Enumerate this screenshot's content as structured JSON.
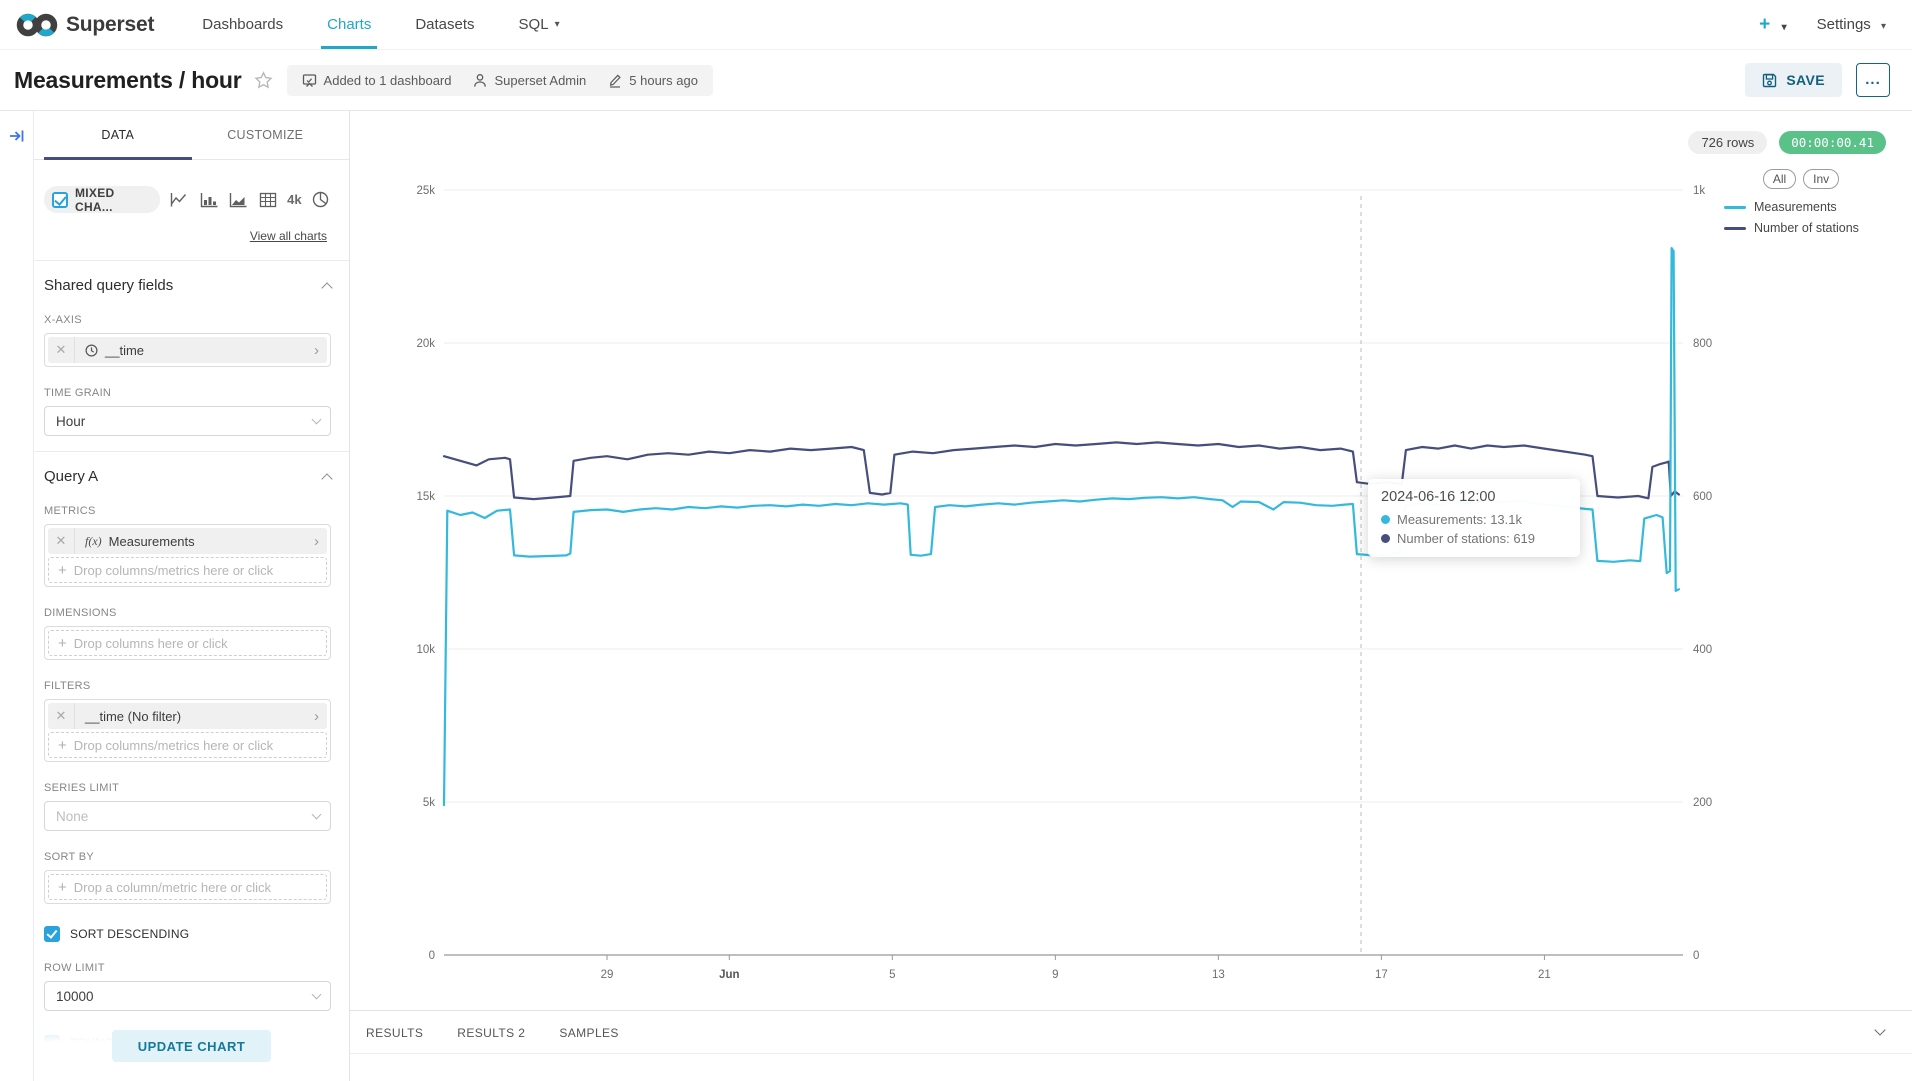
{
  "nav": {
    "brand": "Superset",
    "items": [
      {
        "label": "Dashboards",
        "active": false
      },
      {
        "label": "Charts",
        "active": true
      },
      {
        "label": "Datasets",
        "active": false
      },
      {
        "label": "SQL",
        "active": false
      }
    ],
    "plus": "+",
    "settings": "Settings"
  },
  "header": {
    "title": "Measurements / hour",
    "meta": {
      "dashboards": "Added to 1 dashboard",
      "owner": "Superset Admin",
      "modified": "5 hours ago"
    },
    "save": "SAVE",
    "more": "..."
  },
  "panel": {
    "tab_data": "DATA",
    "tab_customize": "CUSTOMIZE",
    "viz_chip": "MIXED CHA...",
    "viz_4k": "4k",
    "view_all": "View all charts",
    "shared": {
      "heading": "Shared query fields",
      "xaxis_label": "X-AXIS",
      "xaxis_value": "__time",
      "time_grain_label": "TIME GRAIN",
      "time_grain_value": "Hour"
    },
    "query_a": {
      "heading": "Query A",
      "metrics_label": "METRICS",
      "metric_fn": "f(x)",
      "metric_value": "Measurements",
      "drop_metrics": "Drop columns/metrics here or click",
      "dimensions_label": "DIMENSIONS",
      "drop_columns": "Drop columns here or click",
      "filters_label": "FILTERS",
      "filter_value": "__time (No filter)",
      "drop_filters": "Drop columns/metrics here or click",
      "series_limit_label": "SERIES LIMIT",
      "series_limit_value": "None",
      "sort_by_label": "SORT BY",
      "drop_sort": "Drop a column/metric here or click",
      "sort_descending": "SORT DESCENDING",
      "row_limit_label": "ROW LIMIT",
      "row_limit_value": "10000",
      "truncate_metric": "TRUNCATE METRIC",
      "update_chart": "UPDATE CHART"
    }
  },
  "chart_area": {
    "rows_badge": "726 rows",
    "timer_badge": "00:00:00.41"
  },
  "results": {
    "tabs": [
      "RESULTS",
      "RESULTS 2",
      "SAMPLES"
    ]
  },
  "colors": {
    "accent": "#20A7C9",
    "success": "#5AC189",
    "measurements": "#33B9DC",
    "stations": "#454E7C"
  },
  "chart_data": {
    "type": "line",
    "x_axis": {
      "note": "day offsets; day 0 = 2024-05-25 00:00, hourly grain, 726 rows",
      "range_days": [
        0,
        30.4
      ],
      "ticks": [
        {
          "pos": 4,
          "label": "29",
          "bold": false
        },
        {
          "pos": 7,
          "label": "Jun",
          "bold": true
        },
        {
          "pos": 11,
          "label": "5",
          "bold": false
        },
        {
          "pos": 15,
          "label": "9",
          "bold": false
        },
        {
          "pos": 19,
          "label": "13",
          "bold": false
        },
        {
          "pos": 23,
          "label": "17",
          "bold": false
        },
        {
          "pos": 27,
          "label": "21",
          "bold": false
        }
      ]
    },
    "y_left": {
      "range": [
        0,
        25000
      ],
      "ticks": [
        "0",
        "5k",
        "10k",
        "15k",
        "20k",
        "25k"
      ]
    },
    "y_right": {
      "range": [
        0,
        1000
      ],
      "ticks": [
        "0",
        "200",
        "400",
        "600",
        "800",
        "1k"
      ]
    },
    "legend_buttons": [
      "All",
      "Inv"
    ],
    "crosshair_day": 22.5,
    "tooltip": {
      "title": "2024-06-16 12:00",
      "rows": [
        {
          "text": "Measurements: 13.1k",
          "series": 0
        },
        {
          "text": "Number of stations: 619",
          "series": 1
        }
      ]
    },
    "series": [
      {
        "name": "Measurements",
        "color": "#33B9DC",
        "axis": "left",
        "points": [
          [
            0,
            4900
          ],
          [
            0.08,
            14520
          ],
          [
            0.4,
            14380
          ],
          [
            0.7,
            14460
          ],
          [
            1.0,
            14280
          ],
          [
            1.3,
            14520
          ],
          [
            1.62,
            14560
          ],
          [
            1.72,
            13060
          ],
          [
            2.1,
            13020
          ],
          [
            2.6,
            13040
          ],
          [
            3.0,
            13060
          ],
          [
            3.1,
            13120
          ],
          [
            3.18,
            14480
          ],
          [
            3.6,
            14540
          ],
          [
            4.0,
            14560
          ],
          [
            4.4,
            14480
          ],
          [
            4.8,
            14560
          ],
          [
            5.2,
            14600
          ],
          [
            5.6,
            14560
          ],
          [
            6.0,
            14640
          ],
          [
            6.4,
            14600
          ],
          [
            6.8,
            14660
          ],
          [
            7.2,
            14620
          ],
          [
            7.6,
            14680
          ],
          [
            8.0,
            14700
          ],
          [
            8.4,
            14660
          ],
          [
            8.8,
            14720
          ],
          [
            9.2,
            14680
          ],
          [
            9.6,
            14740
          ],
          [
            10.0,
            14700
          ],
          [
            10.4,
            14760
          ],
          [
            10.8,
            14720
          ],
          [
            11.2,
            14760
          ],
          [
            11.38,
            14720
          ],
          [
            11.45,
            13080
          ],
          [
            11.7,
            13050
          ],
          [
            11.95,
            13100
          ],
          [
            12.05,
            14640
          ],
          [
            12.4,
            14700
          ],
          [
            12.8,
            14660
          ],
          [
            13.2,
            14720
          ],
          [
            13.6,
            14760
          ],
          [
            14.0,
            14720
          ],
          [
            14.4,
            14780
          ],
          [
            14.8,
            14820
          ],
          [
            15.2,
            14860
          ],
          [
            15.6,
            14820
          ],
          [
            16.0,
            14880
          ],
          [
            16.4,
            14920
          ],
          [
            16.8,
            14900
          ],
          [
            17.2,
            14940
          ],
          [
            17.6,
            14960
          ],
          [
            18.0,
            14920
          ],
          [
            18.4,
            14960
          ],
          [
            18.8,
            14900
          ],
          [
            19.1,
            14860
          ],
          [
            19.35,
            14640
          ],
          [
            19.55,
            14820
          ],
          [
            20.0,
            14800
          ],
          [
            20.35,
            14560
          ],
          [
            20.6,
            14800
          ],
          [
            21.0,
            14780
          ],
          [
            21.4,
            14700
          ],
          [
            21.8,
            14680
          ],
          [
            22.1,
            14720
          ],
          [
            22.3,
            14740
          ],
          [
            22.4,
            13100
          ],
          [
            22.8,
            13060
          ],
          [
            23.2,
            13080
          ],
          [
            23.45,
            13150
          ],
          [
            23.58,
            14680
          ],
          [
            24.0,
            14760
          ],
          [
            24.4,
            14700
          ],
          [
            24.8,
            14800
          ],
          [
            25.2,
            14760
          ],
          [
            25.6,
            14840
          ],
          [
            26.0,
            14800
          ],
          [
            26.4,
            14840
          ],
          [
            26.8,
            14760
          ],
          [
            27.2,
            14700
          ],
          [
            27.6,
            14640
          ],
          [
            28.0,
            14580
          ],
          [
            28.18,
            14560
          ],
          [
            28.3,
            12880
          ],
          [
            28.7,
            12850
          ],
          [
            29.1,
            12900
          ],
          [
            29.35,
            12870
          ],
          [
            29.45,
            14260
          ],
          [
            29.75,
            14380
          ],
          [
            29.9,
            14300
          ],
          [
            30.0,
            12480
          ],
          [
            30.08,
            12550
          ],
          [
            30.12,
            23100
          ],
          [
            30.17,
            23000
          ],
          [
            30.22,
            11900
          ],
          [
            30.3,
            11950
          ]
        ]
      },
      {
        "name": "Number of stations",
        "color": "#454E7C",
        "axis": "right",
        "points": [
          [
            0,
            652
          ],
          [
            0.4,
            646
          ],
          [
            0.8,
            640
          ],
          [
            1.1,
            648
          ],
          [
            1.5,
            650
          ],
          [
            1.62,
            648
          ],
          [
            1.72,
            598
          ],
          [
            2.2,
            596
          ],
          [
            2.7,
            598
          ],
          [
            3.1,
            600
          ],
          [
            3.18,
            646
          ],
          [
            3.6,
            650
          ],
          [
            4.0,
            652
          ],
          [
            4.5,
            648
          ],
          [
            5.0,
            654
          ],
          [
            5.5,
            656
          ],
          [
            6.0,
            654
          ],
          [
            6.5,
            658
          ],
          [
            7.0,
            656
          ],
          [
            7.5,
            660
          ],
          [
            8.0,
            658
          ],
          [
            8.5,
            662
          ],
          [
            9.0,
            660
          ],
          [
            9.5,
            662
          ],
          [
            10.0,
            664
          ],
          [
            10.3,
            660
          ],
          [
            10.45,
            604
          ],
          [
            10.75,
            602
          ],
          [
            10.95,
            604
          ],
          [
            11.05,
            654
          ],
          [
            11.5,
            658
          ],
          [
            12.0,
            656
          ],
          [
            12.5,
            660
          ],
          [
            13.0,
            662
          ],
          [
            13.5,
            664
          ],
          [
            14.0,
            666
          ],
          [
            14.5,
            664
          ],
          [
            15.0,
            668
          ],
          [
            15.5,
            666
          ],
          [
            16.0,
            668
          ],
          [
            16.5,
            670
          ],
          [
            17.0,
            668
          ],
          [
            17.5,
            670
          ],
          [
            18.0,
            668
          ],
          [
            18.5,
            666
          ],
          [
            19.0,
            668
          ],
          [
            19.5,
            664
          ],
          [
            20.0,
            666
          ],
          [
            20.5,
            662
          ],
          [
            21.0,
            664
          ],
          [
            21.5,
            660
          ],
          [
            22.0,
            662
          ],
          [
            22.3,
            658
          ],
          [
            22.4,
            618
          ],
          [
            22.7,
            616
          ],
          [
            23.1,
            618
          ],
          [
            23.5,
            616
          ],
          [
            23.6,
            660
          ],
          [
            24.0,
            664
          ],
          [
            24.4,
            662
          ],
          [
            24.8,
            666
          ],
          [
            25.2,
            662
          ],
          [
            25.6,
            666
          ],
          [
            26.0,
            664
          ],
          [
            26.5,
            666
          ],
          [
            27.0,
            662
          ],
          [
            27.5,
            658
          ],
          [
            28.0,
            654
          ],
          [
            28.18,
            652
          ],
          [
            28.3,
            600
          ],
          [
            28.8,
            598
          ],
          [
            29.3,
            600
          ],
          [
            29.55,
            597
          ],
          [
            29.65,
            638
          ],
          [
            29.85,
            642
          ],
          [
            30.0,
            644
          ],
          [
            30.05,
            645
          ],
          [
            30.1,
            600
          ],
          [
            30.2,
            606
          ],
          [
            30.3,
            602
          ]
        ]
      }
    ]
  }
}
